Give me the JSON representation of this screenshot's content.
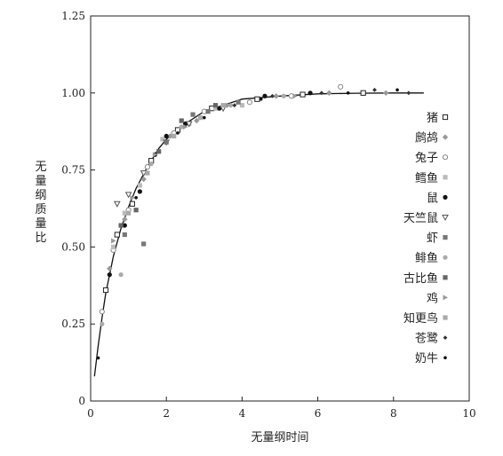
{
  "chart_data": {
    "type": "scatter",
    "xlabel": "无量纲时间",
    "ylabel": "无量纲质量比",
    "xlim": [
      0,
      10
    ],
    "ylim": [
      0,
      1.25
    ],
    "x_ticks": [
      "0",
      "2",
      "4",
      "6",
      "8",
      "10"
    ],
    "y_ticks": [
      "0",
      "0.25",
      "0.50",
      "0.75",
      "1.00",
      "1.25"
    ],
    "grid": false,
    "legend_position": "right",
    "curve": {
      "x": [
        0.1,
        0.2,
        0.3,
        0.4,
        0.5,
        0.6,
        0.8,
        1.0,
        1.2,
        1.5,
        1.8,
        2.0,
        2.5,
        3.0,
        3.5,
        4.0,
        5.0,
        6.0,
        7.0,
        8.0,
        8.8
      ],
      "y": [
        0.08,
        0.18,
        0.27,
        0.35,
        0.41,
        0.47,
        0.56,
        0.63,
        0.69,
        0.76,
        0.82,
        0.85,
        0.9,
        0.94,
        0.96,
        0.98,
        0.99,
        0.997,
        0.999,
        1.0,
        1.0
      ]
    },
    "series": [
      {
        "name": "猪",
        "marker": "square-open",
        "color": "#222222",
        "x": [
          0.4,
          0.7,
          1.1,
          1.6,
          2.3,
          3.2,
          4.4,
          5.6,
          7.2
        ],
        "y": [
          0.36,
          0.54,
          0.64,
          0.78,
          0.88,
          0.95,
          0.98,
          0.995,
          1.0
        ]
      },
      {
        "name": "鹧鸪",
        "marker": "diamond",
        "color": "#999999",
        "x": [
          0.5,
          0.9,
          1.4,
          2.1,
          2.8,
          3.6,
          4.9,
          6.3,
          7.8
        ],
        "y": [
          0.43,
          0.59,
          0.72,
          0.86,
          0.91,
          0.96,
          0.99,
          1.0,
          1.0
        ]
      },
      {
        "name": "兔子",
        "marker": "circle-open",
        "color": "#888888",
        "x": [
          0.3,
          0.6,
          1.0,
          1.5,
          2.2,
          3.0,
          4.2,
          5.3,
          6.6
        ],
        "y": [
          0.29,
          0.49,
          0.62,
          0.76,
          0.87,
          0.94,
          0.97,
          0.99,
          1.02
        ]
      },
      {
        "name": "鳕鱼",
        "marker": "square",
        "color": "#bbbbbb",
        "x": [
          0.6,
          0.9,
          1.3,
          1.9,
          2.6,
          3.3,
          4.0
        ],
        "y": [
          0.5,
          0.61,
          0.7,
          0.85,
          0.9,
          0.95,
          0.96
        ]
      },
      {
        "name": "鼠",
        "marker": "circle",
        "color": "#111111",
        "x": [
          0.5,
          0.9,
          1.3,
          1.7,
          2.0,
          2.5,
          3.4,
          4.6,
          5.8
        ],
        "y": [
          0.41,
          0.57,
          0.68,
          0.8,
          0.86,
          0.9,
          0.95,
          0.99,
          1.0
        ]
      },
      {
        "name": "天竺鼠",
        "marker": "triangle-down",
        "color": "#555555",
        "x": [
          0.7,
          1.0,
          1.4,
          2.0,
          2.6,
          3.5
        ],
        "y": [
          0.64,
          0.67,
          0.74,
          0.84,
          0.9,
          0.95
        ]
      },
      {
        "name": "虾",
        "marker": "square",
        "color": "#777777",
        "x": [
          0.9,
          1.4,
          2.0,
          2.7,
          3.1,
          3.9
        ],
        "y": [
          0.54,
          0.51,
          0.84,
          0.93,
          0.94,
          0.97
        ]
      },
      {
        "name": "鲱鱼",
        "marker": "circle",
        "color": "#aaaaaa",
        "x": [
          0.3,
          0.8,
          1.6,
          2.4,
          3.7,
          5.1
        ],
        "y": [
          0.25,
          0.41,
          0.77,
          0.89,
          0.96,
          0.99
        ]
      },
      {
        "name": "古比鱼",
        "marker": "square",
        "color": "#666666",
        "x": [
          0.8,
          1.2,
          1.8,
          2.4,
          3.3
        ],
        "y": [
          0.57,
          0.62,
          0.81,
          0.91,
          0.96
        ]
      },
      {
        "name": "鸡",
        "marker": "triangle-right",
        "color": "#999999",
        "x": [
          0.6,
          1.1,
          1.7,
          2.5,
          3.6,
          5.4
        ],
        "y": [
          0.52,
          0.66,
          0.8,
          0.89,
          0.96,
          0.99
        ]
      },
      {
        "name": "知更鸟",
        "marker": "square",
        "color": "#aaaaaa",
        "x": [
          1.0,
          1.5,
          2.2,
          2.9,
          3.5
        ],
        "y": [
          0.61,
          0.74,
          0.86,
          0.92,
          0.96
        ]
      },
      {
        "name": "苍鹭",
        "marker": "diamond-small",
        "color": "#333333",
        "x": [
          3.8,
          4.8,
          6.1,
          7.5,
          8.4
        ],
        "y": [
          0.96,
          0.99,
          1.0,
          1.01,
          1.0
        ]
      },
      {
        "name": "奶牛",
        "marker": "dot",
        "color": "#111111",
        "x": [
          0.2,
          1.2,
          2.3,
          3.0,
          4.5,
          6.8,
          8.1
        ],
        "y": [
          0.14,
          0.66,
          0.87,
          0.92,
          0.98,
          1.0,
          1.01
        ]
      }
    ]
  }
}
